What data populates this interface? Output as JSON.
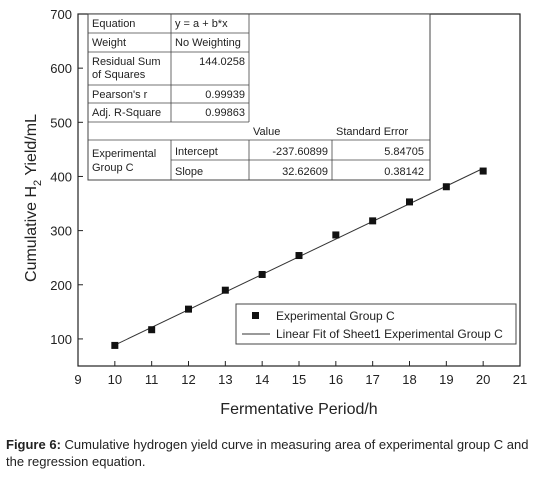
{
  "chart_data": {
    "type": "scatter",
    "xlabel": "Fermentative Period/h",
    "ylabel_main": "Cumulative H",
    "ylabel_sub": "2",
    "ylabel_tail": " Yield/mL",
    "xlim": [
      9,
      21
    ],
    "ylim": [
      50,
      700
    ],
    "xticks": [
      9,
      10,
      11,
      12,
      13,
      14,
      15,
      16,
      17,
      18,
      19,
      20,
      21
    ],
    "yticks": [
      100,
      200,
      300,
      400,
      500,
      600,
      700
    ],
    "grid": false,
    "series": [
      {
        "name": "Experimental Group C",
        "kind": "points",
        "marker": "square",
        "x": [
          10,
          11,
          12,
          13,
          14,
          15,
          16,
          17,
          18,
          19,
          20
        ],
        "y": [
          88,
          117,
          155,
          190,
          219,
          254,
          292,
          318,
          353,
          381,
          410
        ]
      },
      {
        "name": "Linear Fit of Sheet1 Experimental Group C",
        "kind": "line",
        "intercept": -237.60899,
        "slope": 32.62609,
        "x_range": [
          10,
          20
        ]
      }
    ],
    "legend": {
      "position": "bottom-right",
      "entries": [
        "Experimental Group C",
        "Linear Fit of Sheet1 Experimental Group C"
      ]
    },
    "fit_table": {
      "rows": [
        [
          "Equation",
          "y = a + b*x",
          "",
          ""
        ],
        [
          "Weight",
          "No Weighting",
          "",
          ""
        ],
        [
          "Residual Sum\nof Squares",
          "144.0258",
          "",
          ""
        ],
        [
          "Pearson's r",
          "0.99939",
          "",
          ""
        ],
        [
          "Adj. R-Square",
          "0.99863",
          "",
          ""
        ]
      ],
      "header": [
        "",
        "",
        "Value",
        "Standard Error"
      ],
      "group_label": "Experimental\nGroup C",
      "params": [
        [
          "Intercept",
          "-237.60899",
          "5.84705"
        ],
        [
          "Slope",
          "32.62609",
          "0.38142"
        ]
      ]
    }
  },
  "caption": {
    "label": "Figure 6:",
    "text": " Cumulative hydrogen yield curve in measuring area of experimental group C and the regression equation."
  }
}
